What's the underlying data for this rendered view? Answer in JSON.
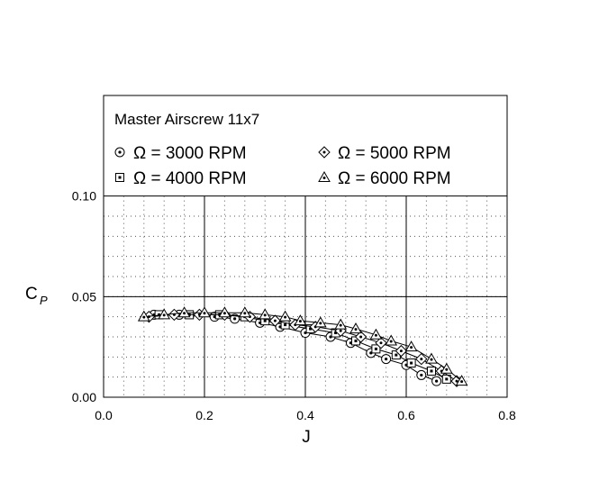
{
  "chart_data": {
    "type": "line",
    "title": "Master Airscrew 11x7",
    "xlabel": "J",
    "ylabel": "C",
    "ylabel_sub": "P",
    "xlim": [
      0.0,
      0.8
    ],
    "ylim": [
      0.0,
      0.15
    ],
    "xticks": [
      "0.0",
      "0.2",
      "0.4",
      "0.6",
      "0.8"
    ],
    "yticks": [
      "0.00",
      "0.05",
      "0.10"
    ],
    "grid": true,
    "legend_position": "top",
    "series": [
      {
        "name": "Ω = 3000 RPM",
        "marker": "circle",
        "x": [
          0.1,
          0.15,
          0.22,
          0.26,
          0.31,
          0.35,
          0.4,
          0.45,
          0.49,
          0.53,
          0.56,
          0.6,
          0.63,
          0.66
        ],
        "y": [
          0.041,
          0.041,
          0.04,
          0.039,
          0.037,
          0.035,
          0.032,
          0.03,
          0.027,
          0.022,
          0.019,
          0.016,
          0.011,
          0.008
        ]
      },
      {
        "name": "Ω = 4000 RPM",
        "marker": "square",
        "x": [
          0.11,
          0.17,
          0.23,
          0.28,
          0.32,
          0.36,
          0.41,
          0.46,
          0.5,
          0.54,
          0.58,
          0.61,
          0.65,
          0.68
        ],
        "y": [
          0.041,
          0.041,
          0.041,
          0.04,
          0.038,
          0.036,
          0.034,
          0.032,
          0.028,
          0.024,
          0.021,
          0.017,
          0.013,
          0.009
        ]
      },
      {
        "name": "Ω = 5000 RPM",
        "marker": "diamond",
        "x": [
          0.09,
          0.14,
          0.19,
          0.24,
          0.29,
          0.34,
          0.38,
          0.42,
          0.47,
          0.51,
          0.55,
          0.59,
          0.63,
          0.67,
          0.7
        ],
        "y": [
          0.04,
          0.041,
          0.041,
          0.041,
          0.04,
          0.038,
          0.036,
          0.035,
          0.033,
          0.03,
          0.027,
          0.023,
          0.019,
          0.013,
          0.008
        ]
      },
      {
        "name": "Ω = 6000 RPM",
        "marker": "triangle",
        "x": [
          0.08,
          0.12,
          0.16,
          0.2,
          0.24,
          0.28,
          0.32,
          0.36,
          0.39,
          0.43,
          0.47,
          0.5,
          0.54,
          0.57,
          0.61,
          0.65,
          0.68,
          0.71
        ],
        "y": [
          0.04,
          0.041,
          0.042,
          0.042,
          0.042,
          0.042,
          0.041,
          0.04,
          0.038,
          0.037,
          0.036,
          0.034,
          0.031,
          0.028,
          0.025,
          0.019,
          0.014,
          0.008
        ]
      }
    ]
  }
}
